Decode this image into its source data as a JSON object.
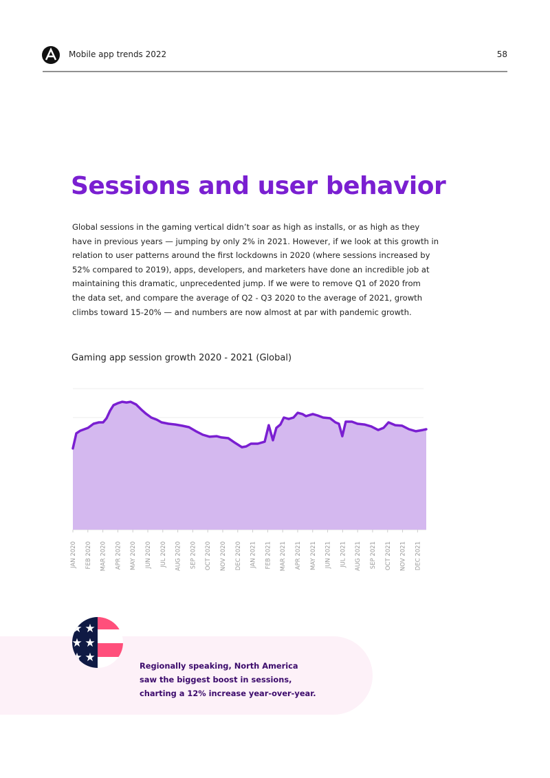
{
  "header": {
    "title": "Mobile app trends 2022",
    "page": "58"
  },
  "title": "Sessions and user behavior",
  "paragraph": [
    "Global sessions in the gaming vertical didn’t soar as high as installs, or as high as they",
    "have in previous years — jumping by only 2% in 2021. However, if we look at this growth in",
    "relation to user patterns around the first lockdowns in 2020 (where sessions increased by",
    "52% compared to 2019), apps, developers, and marketers have done an incredible job at",
    "maintaining this dramatic, unprecedented jump. If we were to remove Q1 of 2020 from",
    "the data set, and compare the average of Q2 - Q3 2020 to the average of 2021, growth",
    "climbs toward 15-20% — and numbers are now almost at par with pandemic growth."
  ],
  "chart_data": {
    "type": "area",
    "title": "Gaming app session growth 2020 - 2021 (Global)",
    "line_color": "#7a1fd1",
    "fill_color": "#d4b8ef",
    "x": [
      0,
      0.23,
      0.5,
      1.01,
      1.38,
      1.74,
      2.02,
      2.25,
      2.48,
      2.71,
      3.03,
      3.3,
      3.58,
      3.85,
      4.22,
      4.54,
      4.86,
      5.23,
      5.6,
      5.92,
      6.38,
      6.83,
      7.29,
      7.75,
      8.21,
      8.67,
      9.13,
      9.59,
      9.91,
      10.37,
      10.83,
      11.28,
      11.56,
      11.88,
      12.34,
      12.8,
      13.07,
      13.35,
      13.58,
      13.85,
      14.08,
      14.4,
      14.72,
      15.0,
      15.32,
      15.55,
      16.01,
      16.33,
      16.7,
      17.16,
      17.52,
      17.75,
      17.98,
      18.21,
      18.62,
      18.99,
      19.45,
      19.91,
      20.37,
      20.73,
      21.06,
      21.51,
      21.97,
      22.43,
      22.89,
      23.35,
      23.58
    ],
    "values": [
      57.6,
      68.3,
      70.2,
      72.2,
      75.1,
      76.1,
      76.1,
      79.0,
      84.4,
      88.3,
      89.8,
      90.7,
      90.2,
      90.7,
      88.8,
      85.4,
      82.4,
      79.5,
      78.0,
      76.1,
      75.1,
      74.6,
      73.7,
      72.7,
      69.8,
      67.3,
      65.9,
      66.3,
      65.4,
      64.9,
      61.5,
      58.5,
      59.0,
      61.0,
      61.0,
      62.4,
      74.1,
      63.4,
      72.2,
      74.6,
      79.5,
      78.5,
      79.5,
      82.9,
      82.0,
      80.5,
      82.0,
      81.0,
      79.5,
      79.0,
      76.1,
      75.1,
      66.3,
      76.6,
      76.6,
      75.1,
      74.6,
      73.2,
      70.7,
      72.2,
      76.1,
      74.1,
      73.7,
      71.2,
      69.8,
      70.7,
      71.2
    ],
    "xlim": [
      0,
      23.58
    ],
    "ylim": [
      0,
      100
    ],
    "xticks": [
      {
        "value": 0,
        "label": "JAN 2020"
      },
      {
        "value": 1,
        "label": "FEB 2020"
      },
      {
        "value": 2,
        "label": "MAR 2020"
      },
      {
        "value": 3,
        "label": "APR 2020"
      },
      {
        "value": 4,
        "label": "MAY 2020"
      },
      {
        "value": 5,
        "label": "JUN 2020"
      },
      {
        "value": 6,
        "label": "JUL 2020"
      },
      {
        "value": 7,
        "label": "AUG 2020"
      },
      {
        "value": 8,
        "label": "SEP 2020"
      },
      {
        "value": 9,
        "label": "OCT 2020"
      },
      {
        "value": 10,
        "label": "NOV 2020"
      },
      {
        "value": 11,
        "label": "DEC 2020"
      },
      {
        "value": 12,
        "label": "JAN 2021"
      },
      {
        "value": 13,
        "label": "FEB 2021"
      },
      {
        "value": 14,
        "label": "MAR 2021"
      },
      {
        "value": 15,
        "label": "APR 2021"
      },
      {
        "value": 16,
        "label": "MAY 2021"
      },
      {
        "value": 17,
        "label": "JUN 2021"
      },
      {
        "value": 18,
        "label": "JUL 2021"
      },
      {
        "value": 19,
        "label": "AUG 2021"
      },
      {
        "value": 20,
        "label": "SEP 2021"
      },
      {
        "value": 21,
        "label": "OCT 2021"
      },
      {
        "value": 22,
        "label": "NOV 2021"
      },
      {
        "value": 23,
        "label": "DEC 2021"
      }
    ]
  },
  "callout": [
    "Regionally speaking, North America",
    "saw the biggest boost in sessions,",
    "charting a 12% increase year-over-year."
  ]
}
